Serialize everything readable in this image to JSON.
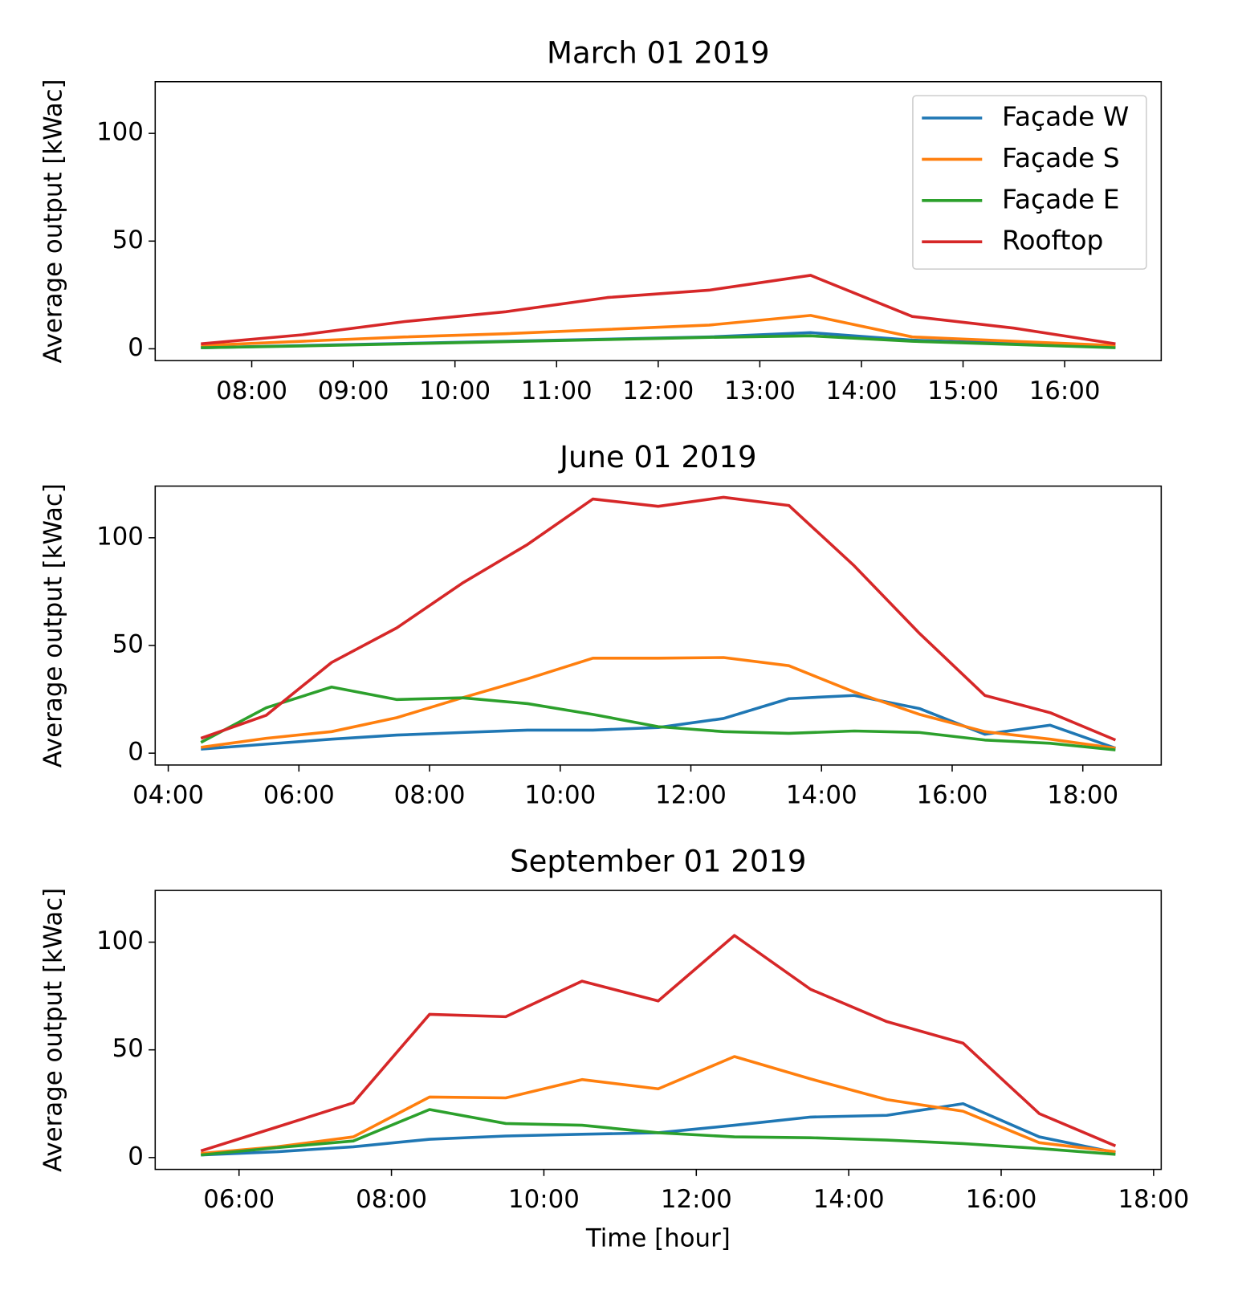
{
  "chart_data": [
    {
      "type": "line",
      "title": "March 01 2019",
      "ylabel": "Average output [kWac]",
      "legend": "upper right",
      "x": [
        7.5,
        8.5,
        9.5,
        10.5,
        11.5,
        12.5,
        13.5,
        14.5,
        15.5,
        16.5
      ],
      "xlim": [
        7.05,
        16.95
      ],
      "ylim": [
        -5.5,
        124
      ],
      "xticks": [
        {
          "value": 8,
          "label": "08:00"
        },
        {
          "value": 9,
          "label": "09:00"
        },
        {
          "value": 10,
          "label": "10:00"
        },
        {
          "value": 11,
          "label": "11:00"
        },
        {
          "value": 12,
          "label": "12:00"
        },
        {
          "value": 13,
          "label": "13:00"
        },
        {
          "value": 14,
          "label": "14:00"
        },
        {
          "value": 15,
          "label": "15:00"
        },
        {
          "value": 16,
          "label": "16:00"
        }
      ],
      "yticks": [
        0,
        50,
        100
      ],
      "series": [
        {
          "name": "Façade W",
          "color": "#1f77b4",
          "values": [
            0.5,
            1.5,
            2.5,
            3.5,
            4.5,
            5.5,
            7.5,
            4,
            2.5,
            0.8
          ]
        },
        {
          "name": "Façade S",
          "color": "#ff7f0e",
          "values": [
            1.5,
            3.5,
            5.5,
            7,
            9,
            11,
            15.5,
            5.5,
            3.5,
            1.5
          ]
        },
        {
          "name": "Façade E",
          "color": "#2ca02c",
          "values": [
            0.5,
            1.3,
            2.3,
            3.3,
            4.3,
            5.3,
            6,
            3.5,
            2,
            0.5
          ]
        },
        {
          "name": "Rooftop",
          "color": "#d62728",
          "values": [
            2.3,
            6.5,
            12.6,
            17.2,
            23.8,
            27.2,
            34.1,
            15,
            9.6,
            2.3
          ]
        }
      ]
    },
    {
      "type": "line",
      "title": "June 01 2019",
      "ylabel": "Average output [kWac]",
      "x": [
        4.5,
        5.5,
        6.5,
        7.5,
        8.5,
        9.5,
        10.5,
        11.5,
        12.5,
        13.5,
        14.5,
        15.5,
        16.5,
        17.5,
        18.5
      ],
      "xlim": [
        3.8,
        19.2
      ],
      "ylim": [
        -5.5,
        124
      ],
      "xticks": [
        {
          "value": 4,
          "label": "04:00"
        },
        {
          "value": 6,
          "label": "06:00"
        },
        {
          "value": 8,
          "label": "08:00"
        },
        {
          "value": 10,
          "label": "10:00"
        },
        {
          "value": 12,
          "label": "12:00"
        },
        {
          "value": 14,
          "label": "14:00"
        },
        {
          "value": 16,
          "label": "16:00"
        },
        {
          "value": 18,
          "label": "18:00"
        }
      ],
      "yticks": [
        0,
        50,
        100
      ],
      "series": [
        {
          "name": "Façade W",
          "color": "#1f77b4",
          "values": [
            1.9,
            4.2,
            6.5,
            8.4,
            9.6,
            10.7,
            10.7,
            11.9,
            16.1,
            25.3,
            26.8,
            20.7,
            8.8,
            13,
            2.3
          ]
        },
        {
          "name": "Façade S",
          "color": "#ff7f0e",
          "values": [
            2.7,
            6.9,
            10,
            16.5,
            25.7,
            34.5,
            44.1,
            44.1,
            44.4,
            40.6,
            28.4,
            18,
            10,
            6.5,
            2.3
          ]
        },
        {
          "name": "Façade E",
          "color": "#2ca02c",
          "values": [
            5,
            21.1,
            30.7,
            24.9,
            25.7,
            23,
            18,
            12.3,
            10,
            9.2,
            10.3,
            9.6,
            6.1,
            4.6,
            1.5
          ]
        },
        {
          "name": "Rooftop",
          "color": "#d62728",
          "values": [
            6.9,
            17.6,
            42.1,
            58.2,
            78.9,
            96.9,
            118,
            114.6,
            118.8,
            115,
            87,
            55.6,
            26.8,
            18.8,
            6.1
          ]
        }
      ]
    },
    {
      "type": "line",
      "title": "September 01 2019",
      "ylabel": "Average output [kWac]",
      "xlabel": "Time [hour]",
      "x": [
        5.5,
        6.5,
        7.5,
        8.5,
        9.5,
        10.5,
        11.5,
        12.5,
        13.5,
        14.5,
        15.5,
        16.5,
        17.5
      ],
      "xlim": [
        4.9,
        18.1
      ],
      "ylim": [
        -5.5,
        124
      ],
      "xticks": [
        {
          "value": 6,
          "label": "06:00"
        },
        {
          "value": 8,
          "label": "08:00"
        },
        {
          "value": 10,
          "label": "10:00"
        },
        {
          "value": 12,
          "label": "12:00"
        },
        {
          "value": 14,
          "label": "14:00"
        },
        {
          "value": 16,
          "label": "16:00"
        },
        {
          "value": 18,
          "label": "18:00"
        }
      ],
      "yticks": [
        0,
        50,
        100
      ],
      "series": [
        {
          "name": "Façade W",
          "color": "#1f77b4",
          "values": [
            1.2,
            2.7,
            5,
            8.5,
            10,
            10.8,
            11.5,
            15,
            18.8,
            19.6,
            25,
            9.6,
            2.3
          ]
        },
        {
          "name": "Façade S",
          "color": "#ff7f0e",
          "values": [
            1.9,
            5,
            9.6,
            28.1,
            27.7,
            36.2,
            31.9,
            46.9,
            36.5,
            26.9,
            21.5,
            6.9,
            2.7
          ]
        },
        {
          "name": "Façade E",
          "color": "#2ca02c",
          "values": [
            1.2,
            4.6,
            7.7,
            22.3,
            15.8,
            15,
            11.5,
            9.6,
            9.2,
            8.1,
            6.5,
            4.2,
            1.5
          ]
        },
        {
          "name": "Rooftop",
          "color": "#d62728",
          "values": [
            3.1,
            14.2,
            25.4,
            66.5,
            65.4,
            81.9,
            72.7,
            103.1,
            78.1,
            63.1,
            53.1,
            20.4,
            5.4
          ]
        }
      ]
    }
  ]
}
